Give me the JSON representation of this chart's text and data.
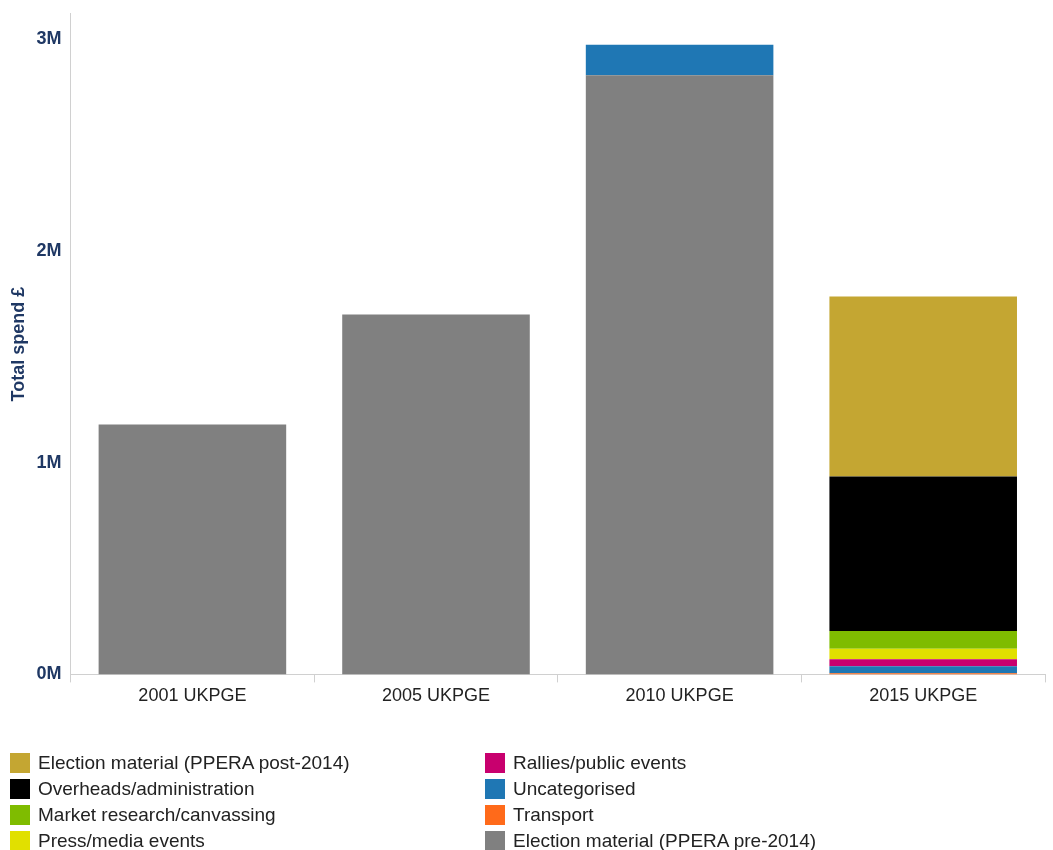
{
  "chart_data": {
    "type": "bar",
    "stacked": true,
    "ylabel": "Total spend £",
    "categories": [
      "2001 UKPGE",
      "2005 UKPGE",
      "2010 UKPGE",
      "2015 UKPGE"
    ],
    "ylim": [
      0,
      3.12
    ],
    "yticks": [
      {
        "value": 0,
        "label": "0M"
      },
      {
        "value": 1,
        "label": "1M"
      },
      {
        "value": 2,
        "label": "2M"
      },
      {
        "value": 3,
        "label": "3M"
      }
    ],
    "grid": false,
    "legend": "bottom",
    "series": [
      {
        "name": "Election material (PPERA pre-2014)",
        "color": "#808080",
        "values": [
          1.18,
          1.7,
          2.83,
          null
        ]
      },
      {
        "name": "Transport",
        "color": "#ff6a1a",
        "values": [
          null,
          null,
          null,
          0.005
        ]
      },
      {
        "name": "Uncategorised",
        "color": "#1f77b4",
        "values": [
          null,
          null,
          0.144,
          0.033
        ]
      },
      {
        "name": "Rallies/public events",
        "color": "#c8006e",
        "values": [
          null,
          null,
          null,
          0.033
        ]
      },
      {
        "name": "Press/media events",
        "color": "#e1e000",
        "values": [
          null,
          null,
          null,
          0.05
        ]
      },
      {
        "name": "Market research/canvassing",
        "color": "#7fbc00",
        "values": [
          null,
          null,
          null,
          0.084
        ]
      },
      {
        "name": "Overheads/administration",
        "color": "#000000",
        "values": [
          null,
          null,
          null,
          0.73
        ]
      },
      {
        "name": "Election material (PPERA post-2014)",
        "color": "#c4a632",
        "values": [
          null,
          null,
          null,
          0.85
        ]
      }
    ]
  }
}
